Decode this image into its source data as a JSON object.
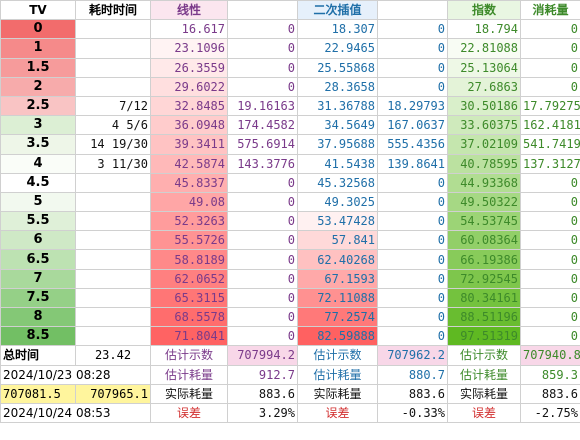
{
  "headers": {
    "tv": "TV",
    "time": "耗时时间",
    "linear": "线性",
    "quad": "二次插值",
    "exp": "指数",
    "cons": "消耗量"
  },
  "rows": [
    {
      "tv": "0",
      "time": "",
      "lin": "16.617",
      "lin2": "0",
      "quad": "18.307",
      "quad2": "0",
      "exp": "18.794",
      "cons": "0"
    },
    {
      "tv": "1",
      "time": "",
      "lin": "23.1096",
      "lin2": "0",
      "quad": "22.9465",
      "quad2": "0",
      "exp": "22.81088",
      "cons": "0"
    },
    {
      "tv": "1.5",
      "time": "",
      "lin": "26.3559",
      "lin2": "0",
      "quad": "25.55868",
      "quad2": "0",
      "exp": "25.13064",
      "cons": "0"
    },
    {
      "tv": "2",
      "time": "",
      "lin": "29.6022",
      "lin2": "0",
      "quad": "28.3658",
      "quad2": "0",
      "exp": "27.6863",
      "cons": "0"
    },
    {
      "tv": "2.5",
      "time": "7/12",
      "lin": "32.8485",
      "lin2": "19.16163",
      "quad": "31.36788",
      "quad2": "18.29793",
      "exp": "30.50186",
      "cons": "17.79275"
    },
    {
      "tv": "3",
      "time": "4  5/6",
      "lin": "36.0948",
      "lin2": "174.4582",
      "quad": "34.5649",
      "quad2": "167.0637",
      "exp": "33.60375",
      "cons": "162.4181"
    },
    {
      "tv": "3.5",
      "time": "14 19/30",
      "lin": "39.3411",
      "lin2": "575.6914",
      "quad": "37.95688",
      "quad2": "555.4356",
      "exp": "37.02109",
      "cons": "541.7419"
    },
    {
      "tv": "4",
      "time": "3 11/30",
      "lin": "42.5874",
      "lin2": "143.3776",
      "quad": "41.5438",
      "quad2": "139.8641",
      "exp": "40.78595",
      "cons": "137.3127"
    },
    {
      "tv": "4.5",
      "time": "",
      "lin": "45.8337",
      "lin2": "0",
      "quad": "45.32568",
      "quad2": "0",
      "exp": "44.93368",
      "cons": "0"
    },
    {
      "tv": "5",
      "time": "",
      "lin": "49.08",
      "lin2": "0",
      "quad": "49.3025",
      "quad2": "0",
      "exp": "49.50322",
      "cons": "0"
    },
    {
      "tv": "5.5",
      "time": "",
      "lin": "52.3263",
      "lin2": "0",
      "quad": "53.47428",
      "quad2": "0",
      "exp": "54.53745",
      "cons": "0"
    },
    {
      "tv": "6",
      "time": "",
      "lin": "55.5726",
      "lin2": "0",
      "quad": "57.841",
      "quad2": "0",
      "exp": "60.08364",
      "cons": "0"
    },
    {
      "tv": "6.5",
      "time": "",
      "lin": "58.8189",
      "lin2": "0",
      "quad": "62.40268",
      "quad2": "0",
      "exp": "66.19386",
      "cons": "0"
    },
    {
      "tv": "7",
      "time": "",
      "lin": "62.0652",
      "lin2": "0",
      "quad": "67.1593",
      "quad2": "0",
      "exp": "72.92545",
      "cons": "0"
    },
    {
      "tv": "7.5",
      "time": "",
      "lin": "65.3115",
      "lin2": "0",
      "quad": "72.11088",
      "quad2": "0",
      "exp": "80.34161",
      "cons": "0"
    },
    {
      "tv": "8",
      "time": "",
      "lin": "68.5578",
      "lin2": "0",
      "quad": "77.2574",
      "quad2": "0",
      "exp": "88.51196",
      "cons": "0"
    },
    {
      "tv": "8.5",
      "time": "",
      "lin": "71.8041",
      "lin2": "0",
      "quad": "82.59888",
      "quad2": "0",
      "exp": "97.51319",
      "cons": "0"
    }
  ],
  "footer": {
    "total_label": "总时间",
    "total_value": "23.42",
    "est_count_label": "估计示数",
    "lin_est": "707994.2",
    "quad_est": "707962.2",
    "exp_est": "707940.8",
    "start_time": "2024/10/23 08:28",
    "est_cons_label": "估计耗量",
    "lin_cons": "912.7",
    "quad_cons": "880.7",
    "exp_cons": "859.3",
    "reading_a": "707081.5",
    "reading_b": "707965.1",
    "actual_label": "实际耗量",
    "lin_actual": "883.6",
    "quad_actual": "883.6",
    "exp_actual": "883.6",
    "end_time": "2024/10/24 08:53",
    "err_label": "误差",
    "lin_err": "3.29%",
    "quad_err": "-0.33%",
    "exp_err": "-2.75%"
  },
  "colors": {
    "tv_bg": [
      "#f26c6c",
      "#f58a8a",
      "#f69b9b",
      "#f7abab",
      "#f9c4c4",
      "#dcefd4",
      "#eef6e8",
      "#fafdf8",
      "#ffffff",
      "#f2f9ef",
      "#dff0d8",
      "#cfe9c6",
      "#bde2b2",
      "#a9d99c",
      "#95d087",
      "#84c876",
      "#72bf64"
    ],
    "lin_bg": [
      "#ffffff",
      "#fff3f3",
      "#ffe9e9",
      "#ffdfdf",
      "#ffd6d6",
      "#ffcccc",
      "#ffc3c3",
      "#ffb9b9",
      "#ffafaf",
      "#ffa6a6",
      "#ff9c9c",
      "#ff9393",
      "#ff8989",
      "#ff8080",
      "#ff7676",
      "#ff6d6d",
      "#ff6363"
    ],
    "quad_bg": [
      "#ffffff",
      "#ffffff",
      "#ffffff",
      "#ffffff",
      "#ffffff",
      "#ffffff",
      "#ffffff",
      "#ffffff",
      "#ffffff",
      "#ffffff",
      "#fff1f1",
      "#ffd9d9",
      "#ffc1c1",
      "#ffa9a9",
      "#ff9191",
      "#ff7979",
      "#ff6161"
    ],
    "exp_bg": [
      "#ffffff",
      "#f8fcf4",
      "#eef8e6",
      "#e4f3d8",
      "#d9efca",
      "#cfeabc",
      "#c5e6ae",
      "#bbe1a0",
      "#b1dd92",
      "#a6d884",
      "#9cd476",
      "#92cf68",
      "#88cb5a",
      "#7ec64c",
      "#74c23e",
      "#69bd30",
      "#5fb922"
    ],
    "est_bg": "#f8d7e8",
    "yellow": "#fff59d",
    "err_red": "#d23030"
  }
}
